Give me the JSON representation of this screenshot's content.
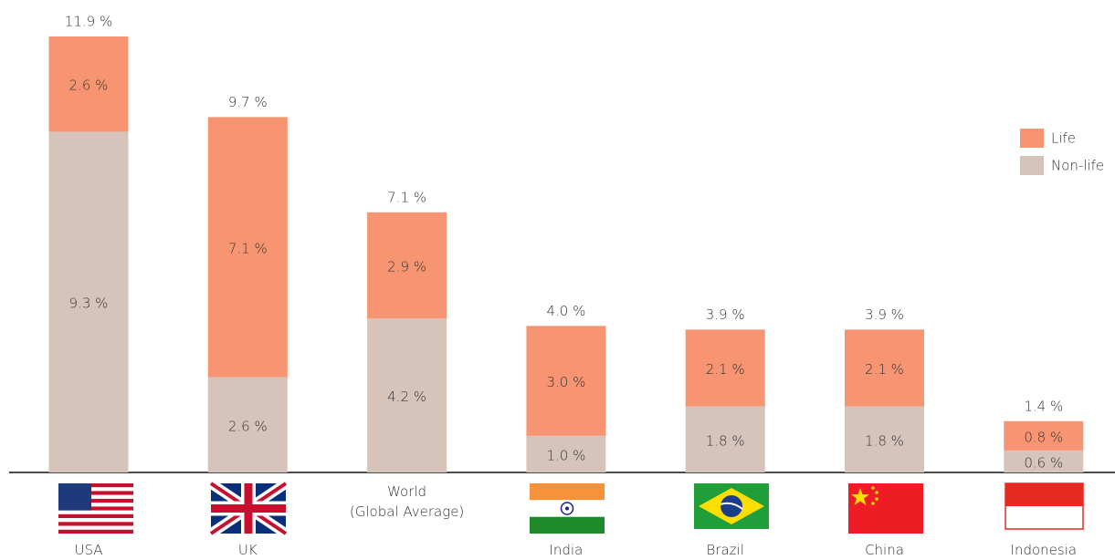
{
  "chart_data": {
    "type": "stacked_bar",
    "categories": [
      "USA",
      "UK",
      "World\n(Global Average)",
      "India",
      "Brazil",
      "China",
      "Indonesia"
    ],
    "series": [
      {
        "name": "Non-life",
        "color": "#d6c4bb",
        "values": [
          9.3,
          2.6,
          4.2,
          1.0,
          1.8,
          1.8,
          0.6
        ],
        "value_labels": [
          "9.3 %",
          "2.6 %",
          "4.2 %",
          "1.0 %",
          "1.8 %",
          "1.8 %",
          "0.6 %"
        ]
      },
      {
        "name": "Life",
        "color": "#f79572",
        "values": [
          2.6,
          7.1,
          2.9,
          3.0,
          2.1,
          2.1,
          0.8
        ],
        "value_labels": [
          "2.6 %",
          "7.1 %",
          "2.9 %",
          "3.0 %",
          "2.1 %",
          "2.1 %",
          "0.8 %"
        ]
      }
    ],
    "totals": [
      11.9,
      9.7,
      7.1,
      4.0,
      3.9,
      3.9,
      1.4
    ],
    "total_labels": [
      "11.9 %",
      "9.7 %",
      "7.1 %",
      "4.0 %",
      "3.9 %",
      "3.9 %",
      "1.4 %"
    ],
    "legend": "right"
  }
}
